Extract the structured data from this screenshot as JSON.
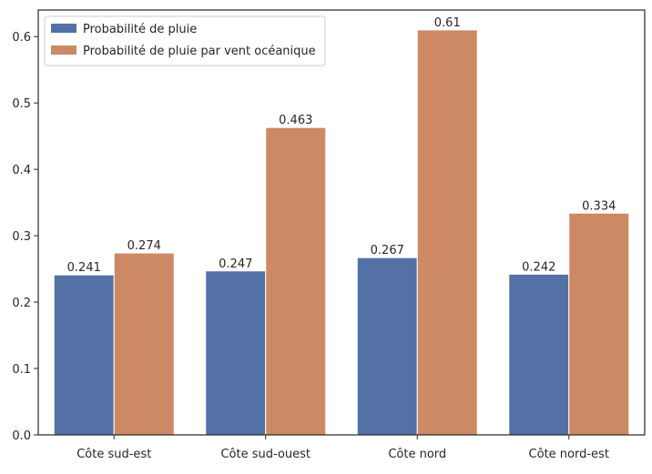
{
  "chart_data": {
    "type": "bar",
    "categories": [
      "Côte sud-est",
      "Côte sud-ouest",
      "Côte nord",
      "Côte nord-est"
    ],
    "series": [
      {
        "name": "Probabilité de pluie",
        "values": [
          0.241,
          0.247,
          0.267,
          0.242
        ],
        "labels": [
          "0.241",
          "0.247",
          "0.267",
          "0.242"
        ],
        "color": "#5471a5"
      },
      {
        "name": "Probabilité de pluie par vent océanique",
        "values": [
          0.274,
          0.463,
          0.61,
          0.334
        ],
        "labels": [
          "0.274",
          "0.463",
          "0.61",
          "0.334"
        ],
        "color": "#cc8963"
      }
    ],
    "title": "",
    "xlabel": "",
    "ylabel": "",
    "ylim": [
      0,
      0.64
    ],
    "yticks": [
      0.0,
      0.1,
      0.2,
      0.3,
      0.4,
      0.5,
      0.6
    ],
    "ytick_labels": [
      "0.0",
      "0.1",
      "0.2",
      "0.3",
      "0.4",
      "0.5",
      "0.6"
    ],
    "grid": false,
    "legend_position": "top-left"
  }
}
